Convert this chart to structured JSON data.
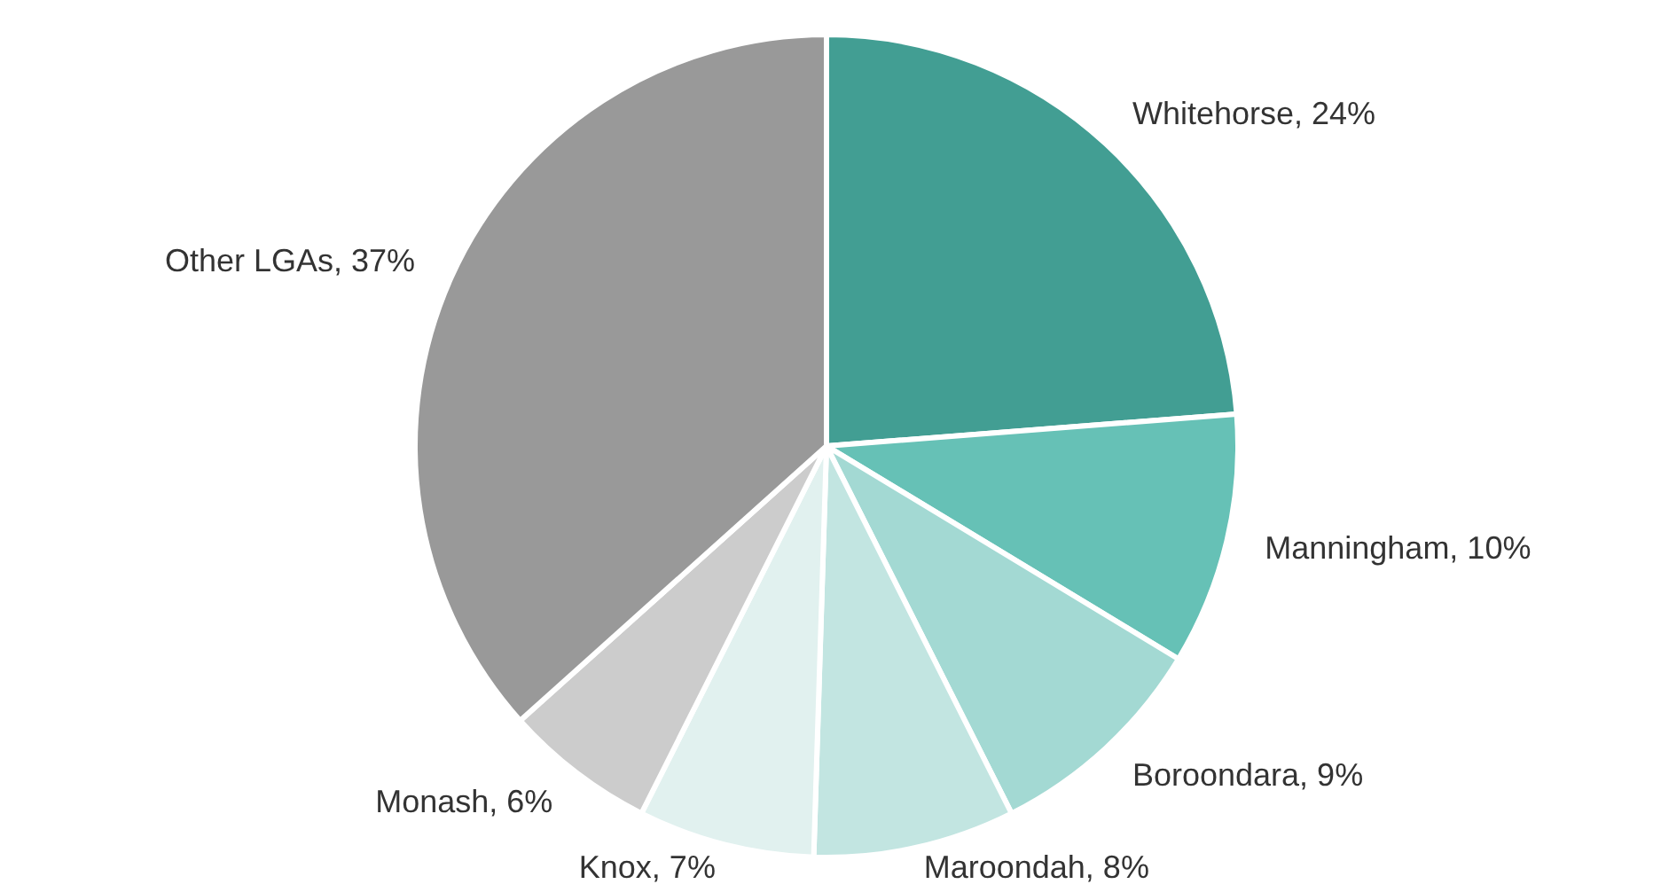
{
  "chart_data": {
    "type": "pie",
    "categories": [
      "Whitehorse",
      "Manningham",
      "Boroondara",
      "Maroondah",
      "Knox",
      "Monash",
      "Other LGAs"
    ],
    "values": [
      24,
      10,
      9,
      8,
      7,
      6,
      37
    ],
    "value_labels": [
      "24%",
      "10%",
      "9%",
      "8%",
      "7%",
      "6%",
      "37%"
    ],
    "colors": [
      "#429e93",
      "#66c1b6",
      "#a3d9d3",
      "#c2e5e1",
      "#e1f1ef",
      "#cccccc",
      "#999999"
    ],
    "legend": false
  }
}
